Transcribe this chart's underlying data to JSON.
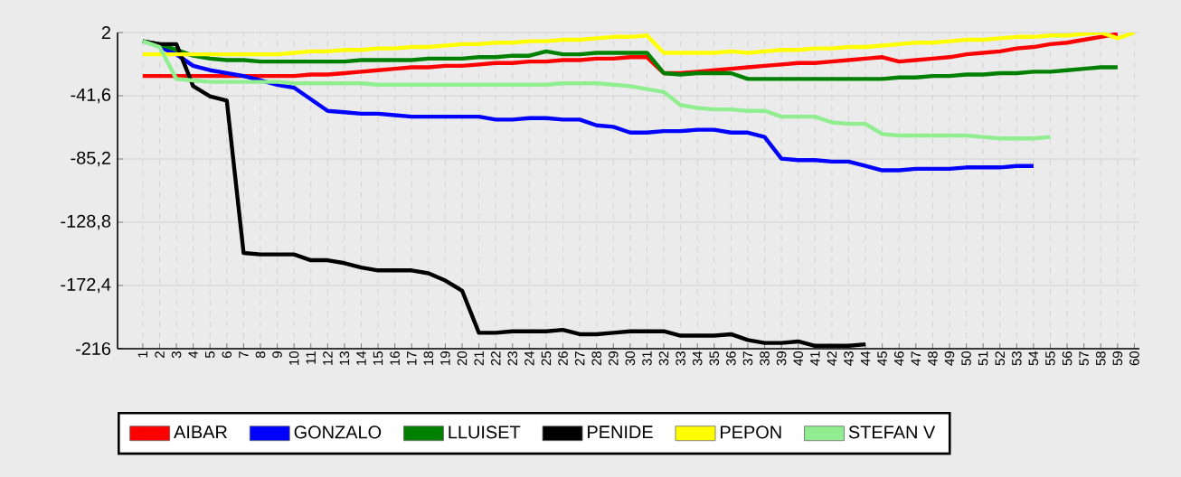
{
  "chart_data": {
    "type": "line",
    "categories": [
      "1",
      "2",
      "3",
      "4",
      "5",
      "6",
      "7",
      "8",
      "9",
      "10",
      "11",
      "12",
      "13",
      "14",
      "15",
      "16",
      "17",
      "18",
      "19",
      "20",
      "21",
      "22",
      "23",
      "24",
      "25",
      "26",
      "27",
      "28",
      "29",
      "30",
      "31",
      "32",
      "33",
      "34",
      "35",
      "36",
      "37",
      "38",
      "39",
      "40",
      "41",
      "42",
      "43",
      "44",
      "45",
      "46",
      "47",
      "48",
      "49",
      "50",
      "51",
      "52",
      "53",
      "54",
      "55",
      "56",
      "57",
      "58",
      "59",
      "60"
    ],
    "series": [
      {
        "name": "AIBAR",
        "color": "#ff0000",
        "values": [
          -28,
          -28,
          -28,
          -28,
          -28,
          -28,
          -28,
          -28,
          -28,
          -28,
          -27,
          -27,
          -26,
          -25,
          -24,
          -23,
          -22,
          -22,
          -21,
          -21,
          -20,
          -19,
          -19,
          -18,
          -18,
          -17,
          -17,
          -16,
          -16,
          -15,
          -15,
          -26,
          -26,
          -25,
          -24,
          -23,
          -22,
          -21,
          -20,
          -19,
          -19,
          -18,
          -17,
          -16,
          -15,
          -18,
          -17,
          -16,
          -15,
          -13,
          -12,
          -11,
          -9,
          -8,
          -6,
          -5,
          -3,
          -1,
          1,
          null
        ]
      },
      {
        "name": "GONZALO",
        "color": "#0000ff",
        "values": [
          null,
          -8,
          -13,
          -21,
          -24,
          -26,
          -28,
          -31,
          -34,
          -36,
          -44,
          -52,
          -53,
          -54,
          -54,
          -55,
          -56,
          -56,
          -56,
          -56,
          -56,
          -58,
          -58,
          -57,
          -57,
          -58,
          -58,
          -62,
          -63,
          -67,
          -67,
          -66,
          -66,
          -65,
          -65,
          -67,
          -67,
          -70,
          -85,
          -86,
          -86,
          -87,
          -87,
          -90,
          -93,
          -93,
          -92,
          -92,
          -92,
          -91,
          -91,
          -91,
          -90,
          -90,
          null,
          null,
          null,
          null,
          null,
          null
        ]
      },
      {
        "name": "LLUISET",
        "color": "#008000",
        "values": [
          -4,
          -6,
          -10,
          -14,
          -16,
          -17,
          -17,
          -18,
          -18,
          -18,
          -18,
          -18,
          -18,
          -17,
          -17,
          -17,
          -17,
          -16,
          -16,
          -16,
          -15,
          -15,
          -14,
          -14,
          -11,
          -13,
          -13,
          -12,
          -12,
          -12,
          -12,
          -26,
          -27,
          -26,
          -26,
          -26,
          -30,
          -30,
          -30,
          -30,
          -30,
          -30,
          -30,
          -30,
          -30,
          -29,
          -29,
          -28,
          -28,
          -27,
          -27,
          -26,
          -26,
          -25,
          -25,
          -24,
          -23,
          -22,
          -22,
          null
        ]
      },
      {
        "name": "PENIDE",
        "color": "#000000",
        "values": [
          -4,
          -6,
          -6,
          -35,
          -42,
          -45,
          -150,
          -151,
          -151,
          -151,
          -155,
          -155,
          -157,
          -160,
          -162,
          -162,
          -162,
          -164,
          -169,
          -176,
          -205,
          -205,
          -204,
          -204,
          -204,
          -203,
          -206,
          -206,
          -205,
          -204,
          -204,
          -204,
          -207,
          -207,
          -207,
          -206,
          -210,
          -212,
          -212,
          -211,
          -214,
          -214,
          -214,
          -213,
          null,
          null,
          null,
          null,
          null,
          null,
          null,
          null,
          null,
          null,
          null,
          null,
          null,
          null,
          null,
          null
        ]
      },
      {
        "name": "PEPON",
        "color": "#ffff00",
        "values": [
          -13,
          -13,
          -13,
          -13,
          -13,
          -13,
          -13,
          -13,
          -13,
          -12,
          -11,
          -11,
          -10,
          -10,
          -9,
          -9,
          -8,
          -8,
          -7,
          -6,
          -6,
          -5,
          -5,
          -4,
          -4,
          -3,
          -3,
          -2,
          -1,
          -1,
          0,
          -12,
          -12,
          -12,
          -12,
          -11,
          -12,
          -11,
          -10,
          -10,
          -9,
          -9,
          -8,
          -8,
          -7,
          -6,
          -5,
          -5,
          -4,
          -3,
          -3,
          -2,
          -1,
          -1,
          0,
          0,
          1,
          2,
          -2,
          2
        ]
      },
      {
        "name": "STEFAN V",
        "color": "#90ee90",
        "values": [
          -4,
          -8,
          -30,
          -31,
          -32,
          -32,
          -32,
          -32,
          -32,
          -33,
          -33,
          -33,
          -33,
          -33,
          -34,
          -34,
          -34,
          -34,
          -34,
          -34,
          -34,
          -34,
          -34,
          -34,
          -34,
          -33,
          -33,
          -33,
          -34,
          -35,
          -37,
          -39,
          -48,
          -50,
          -51,
          -51,
          -52,
          -52,
          -56,
          -56,
          -56,
          -60,
          -61,
          -61,
          -68,
          -69,
          -69,
          -69,
          -69,
          -69,
          -70,
          -71,
          -71,
          -71,
          -70,
          null,
          null,
          null,
          null,
          null
        ]
      }
    ],
    "ylim": [
      -216,
      2
    ],
    "yticks": [
      2,
      {
        "value": -41.6,
        "label": "-41,6"
      },
      {
        "value": -85.2,
        "label": "-85,2"
      },
      {
        "value": -128.8,
        "label": "-128,8"
      },
      {
        "value": -172.4,
        "label": "-172,4"
      },
      -216
    ],
    "grid": true,
    "legend": "bottom",
    "marker": "none",
    "line_style": "solid"
  }
}
